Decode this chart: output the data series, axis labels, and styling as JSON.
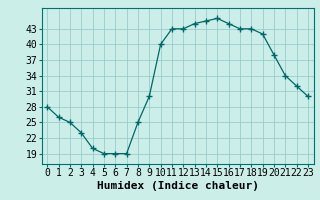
{
  "x": [
    0,
    1,
    2,
    3,
    4,
    5,
    6,
    7,
    8,
    9,
    10,
    11,
    12,
    13,
    14,
    15,
    16,
    17,
    18,
    19,
    20,
    21,
    22,
    23
  ],
  "y": [
    28,
    26,
    25,
    23,
    20,
    19,
    19,
    19,
    25,
    30,
    40,
    43,
    43,
    44,
    44.5,
    45,
    44,
    43,
    43,
    42,
    38,
    34,
    32,
    30
  ],
  "xlabel": "Humidex (Indice chaleur)",
  "ylim": [
    17,
    47
  ],
  "xlim": [
    -0.5,
    23.5
  ],
  "yticks": [
    19,
    22,
    25,
    28,
    31,
    34,
    37,
    40,
    43
  ],
  "xtick_labels": [
    "0",
    "1",
    "2",
    "3",
    "4",
    "5",
    "6",
    "7",
    "8",
    "9",
    "10",
    "11",
    "12",
    "13",
    "14",
    "15",
    "16",
    "17",
    "18",
    "19",
    "20",
    "21",
    "22",
    "23"
  ],
  "line_color": "#006868",
  "marker_color": "#006868",
  "bg_color": "#cceee8",
  "grid_color": "#99cccc",
  "xlabel_fontsize": 8,
  "tick_fontsize": 7
}
